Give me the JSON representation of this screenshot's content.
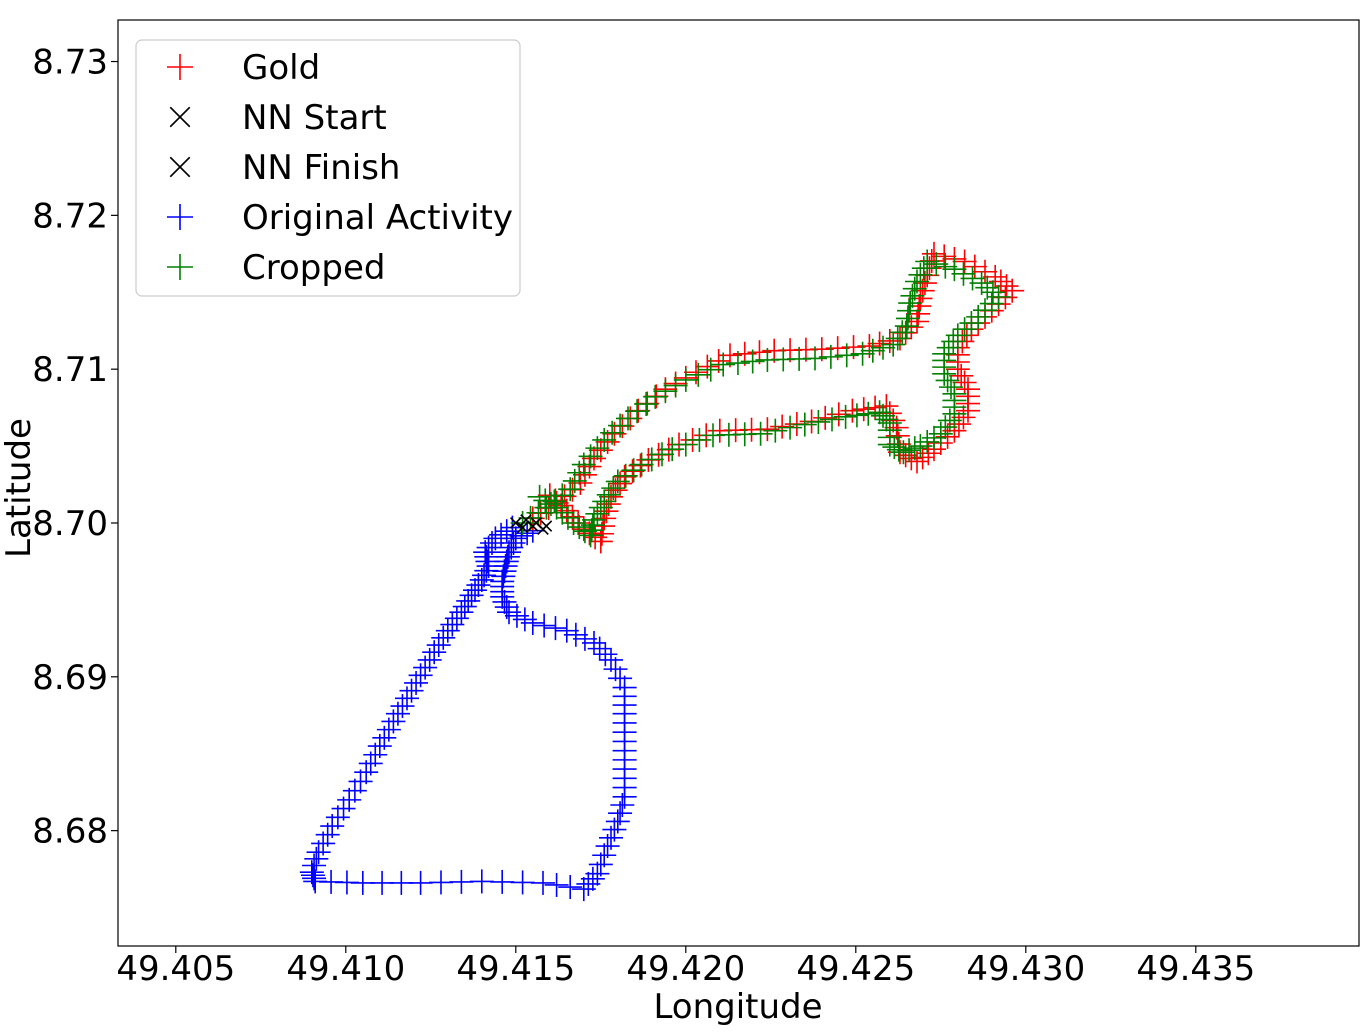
{
  "chart_data": {
    "type": "scatter",
    "title": "",
    "xlabel": "Longitude",
    "ylabel": "Latitude",
    "xlim": [
      49.4033,
      49.4398
    ],
    "ylim": [
      8.6725,
      8.7327
    ],
    "xticks": [
      49.405,
      49.41,
      49.415,
      49.42,
      49.425,
      49.43,
      49.435
    ],
    "xtick_labels": [
      "49.405",
      "49.410",
      "49.415",
      "49.420",
      "49.425",
      "49.430",
      "49.435"
    ],
    "yticks": [
      8.68,
      8.69,
      8.7,
      8.71,
      8.72,
      8.73
    ],
    "ytick_labels": [
      "8.68",
      "8.69",
      "8.70",
      "8.71",
      "8.72",
      "8.73"
    ],
    "grid": false,
    "legend_position": "top-left",
    "legend": [
      {
        "label": "Gold",
        "marker": "+",
        "color": "#ff0000"
      },
      {
        "label": "NN Start",
        "marker": "x",
        "color": "#000000"
      },
      {
        "label": "NN Finish",
        "marker": "x",
        "color": "#000000"
      },
      {
        "label": "Original Activity",
        "marker": "+",
        "color": "#0000ff"
      },
      {
        "label": "Cropped",
        "marker": "+",
        "color": "#008000"
      }
    ],
    "series": [
      {
        "name": "Original Activity",
        "marker": "+",
        "color": "#0000ff",
        "points": [
          [
            49.4149,
            8.6997
          ],
          [
            49.4144,
            8.699
          ],
          [
            49.4141,
            8.6981
          ],
          [
            49.4142,
            8.6972
          ],
          [
            49.414,
            8.6963
          ],
          [
            49.4137,
            8.6953
          ],
          [
            49.4134,
            8.6942
          ],
          [
            49.413,
            8.693
          ],
          [
            49.4126,
            8.6916
          ],
          [
            49.4122,
            8.6901
          ],
          [
            49.4118,
            8.6886
          ],
          [
            49.4114,
            8.6871
          ],
          [
            49.411,
            8.6855
          ],
          [
            49.4106,
            8.6838
          ],
          [
            49.4101,
            8.682
          ],
          [
            49.4096,
            8.6803
          ],
          [
            49.4092,
            8.6786
          ],
          [
            49.409,
            8.6773
          ],
          [
            49.4091,
            8.6767
          ],
          [
            49.4105,
            8.6766
          ],
          [
            49.4122,
            8.6766
          ],
          [
            49.414,
            8.6767
          ],
          [
            49.4158,
            8.6766
          ],
          [
            49.417,
            8.6762
          ],
          [
            49.4174,
            8.6772
          ],
          [
            49.4177,
            8.679
          ],
          [
            49.418,
            8.6806
          ],
          [
            49.4182,
            8.6822
          ],
          [
            49.4182,
            8.684
          ],
          [
            49.4182,
            8.6858
          ],
          [
            49.4182,
            8.6876
          ],
          [
            49.4182,
            8.6893
          ],
          [
            49.4178,
            8.6911
          ],
          [
            49.4173,
            8.6922
          ],
          [
            49.4165,
            8.693
          ],
          [
            49.4155,
            8.6935
          ],
          [
            49.4148,
            8.6942
          ],
          [
            49.4146,
            8.6952
          ],
          [
            49.4146,
            8.6962
          ],
          [
            49.4147,
            8.6972
          ],
          [
            49.4148,
            8.6981
          ],
          [
            49.415,
            8.699
          ],
          [
            49.4155,
            8.6995
          ]
        ]
      },
      {
        "name": "Gold",
        "marker": "+",
        "color": "#ff0000",
        "points": [
          [
            49.4155,
            8.7003
          ],
          [
            49.4162,
            8.7013
          ],
          [
            49.4169,
            8.7026
          ],
          [
            49.4173,
            8.7042
          ],
          [
            49.4179,
            8.7058
          ],
          [
            49.4186,
            8.7073
          ],
          [
            49.4194,
            8.7087
          ],
          [
            49.4203,
            8.7098
          ],
          [
            49.4213,
            8.7109
          ],
          [
            49.4226,
            8.7112
          ],
          [
            49.424,
            8.7113
          ],
          [
            49.4254,
            8.7115
          ],
          [
            49.4263,
            8.712
          ],
          [
            49.4268,
            8.7131
          ],
          [
            49.4269,
            8.7146
          ],
          [
            49.4271,
            8.7161
          ],
          [
            49.4273,
            8.7175
          ],
          [
            49.4282,
            8.717
          ],
          [
            49.4291,
            8.716
          ],
          [
            49.4296,
            8.7151
          ],
          [
            49.429,
            8.7138
          ],
          [
            49.4284,
            8.7126
          ],
          [
            49.428,
            8.7114
          ],
          [
            49.428,
            8.71
          ],
          [
            49.4283,
            8.7087
          ],
          [
            49.4283,
            8.7073
          ],
          [
            49.4279,
            8.706
          ],
          [
            49.4273,
            8.7048
          ],
          [
            49.4268,
            8.704
          ],
          [
            49.4263,
            8.7046
          ],
          [
            49.4262,
            8.7062
          ],
          [
            49.4259,
            8.7076
          ],
          [
            49.4249,
            8.7073
          ],
          [
            49.4237,
            8.7066
          ],
          [
            49.4224,
            8.7061
          ],
          [
            49.421,
            8.706
          ],
          [
            49.4198,
            8.7051
          ],
          [
            49.4189,
            8.7041
          ],
          [
            49.4182,
            8.703
          ],
          [
            49.4178,
            8.7017
          ],
          [
            49.4176,
            8.7003
          ],
          [
            49.4175,
            8.6988
          ],
          [
            49.417,
            8.6996
          ],
          [
            49.4165,
            8.7008
          ],
          [
            49.416,
            8.7018
          ]
        ]
      },
      {
        "name": "Cropped",
        "marker": "+",
        "color": "#008000",
        "points": [
          [
            49.4152,
            8.7
          ],
          [
            49.4159,
            8.701
          ],
          [
            49.4166,
            8.7022
          ],
          [
            49.417,
            8.7038
          ],
          [
            49.4176,
            8.7054
          ],
          [
            49.4183,
            8.7068
          ],
          [
            49.4191,
            8.7082
          ],
          [
            49.42,
            8.7093
          ],
          [
            49.4211,
            8.7103
          ],
          [
            49.4224,
            8.7106
          ],
          [
            49.4238,
            8.7107
          ],
          [
            49.4252,
            8.711
          ],
          [
            49.4261,
            8.7116
          ],
          [
            49.4265,
            8.7128
          ],
          [
            49.4266,
            8.7143
          ],
          [
            49.4268,
            8.7157
          ],
          [
            49.4271,
            8.717
          ],
          [
            49.4279,
            8.7165
          ],
          [
            49.4287,
            8.7156
          ],
          [
            49.4292,
            8.7147
          ],
          [
            49.4286,
            8.7134
          ],
          [
            49.428,
            8.7122
          ],
          [
            49.4276,
            8.711
          ],
          [
            49.4276,
            8.7097
          ],
          [
            49.4279,
            8.7084
          ],
          [
            49.4279,
            8.7071
          ],
          [
            49.4275,
            8.7058
          ],
          [
            49.4269,
            8.705
          ],
          [
            49.4264,
            8.7046
          ],
          [
            49.426,
            8.7051
          ],
          [
            49.426,
            8.7065
          ],
          [
            49.4257,
            8.7072
          ],
          [
            49.4247,
            8.7069
          ],
          [
            49.4235,
            8.7064
          ],
          [
            49.4222,
            8.7058
          ],
          [
            49.4208,
            8.7057
          ],
          [
            49.4196,
            8.7048
          ],
          [
            49.4187,
            8.7038
          ],
          [
            49.418,
            8.7027
          ],
          [
            49.4176,
            8.7014
          ],
          [
            49.4173,
            8.7002
          ],
          [
            49.4172,
            8.6992
          ],
          [
            49.4167,
            8.7
          ],
          [
            49.4162,
            8.701
          ],
          [
            49.4157,
            8.7017
          ]
        ]
      },
      {
        "name": "NN Start",
        "marker": "x",
        "color": "#000000",
        "points": [
          [
            49.415,
            8.7
          ],
          [
            49.4153,
            8.7002
          ],
          [
            49.4156,
            8.7
          ],
          [
            49.4159,
            8.6998
          ]
        ]
      },
      {
        "name": "NN Finish",
        "marker": "x",
        "color": "#000000",
        "points": [
          [
            49.4152,
            8.6997
          ],
          [
            49.4155,
            8.6998
          ],
          [
            49.4158,
            8.6996
          ]
        ]
      }
    ]
  }
}
